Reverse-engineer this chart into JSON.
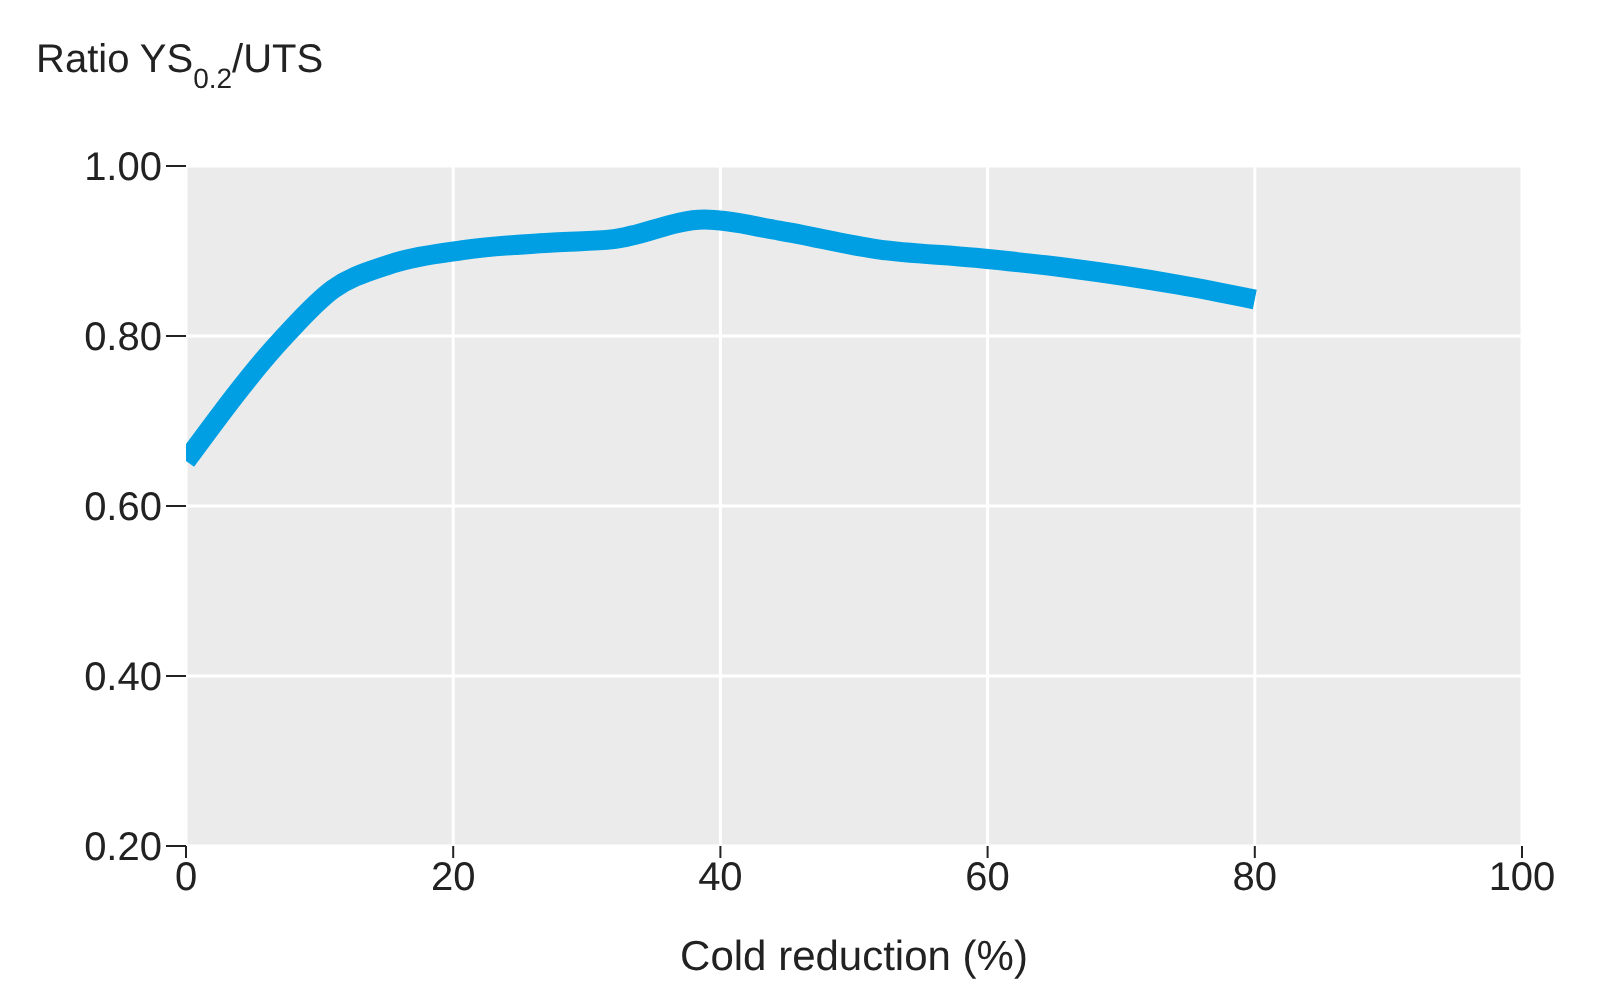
{
  "chart_data": {
    "type": "line",
    "ylabel": "Ratio YS$_{0.2}$/UTS",
    "xlabel": "Cold reduction (%)",
    "x": [
      0,
      7.4,
      11,
      15,
      20.7,
      27.5,
      32,
      38.8,
      44.4,
      51.8,
      59.1,
      66,
      74.4,
      80
    ],
    "series": [
      {
        "color": "#009fe3",
        "values": [
          0.653,
          0.8,
          0.855,
          0.883,
          0.901,
          0.91,
          0.914,
          0.937,
          0.924,
          0.902,
          0.892,
          0.88,
          0.86,
          0.843
        ]
      }
    ],
    "xlim": [
      0,
      100
    ],
    "xticks": [
      0,
      20,
      40,
      60,
      80,
      100
    ],
    "ylim": [
      0.2,
      1.0
    ],
    "yticks": [
      {
        "value": 0.2,
        "label": "0.20"
      },
      {
        "value": 0.4,
        "label": "0.40"
      },
      {
        "value": 0.6,
        "label": "0.60"
      },
      {
        "value": 0.8,
        "label": "0.80"
      },
      {
        "value": 1.0,
        "label": "1.00"
      }
    ],
    "grid": true,
    "marker": "none",
    "line_style": "solid"
  }
}
